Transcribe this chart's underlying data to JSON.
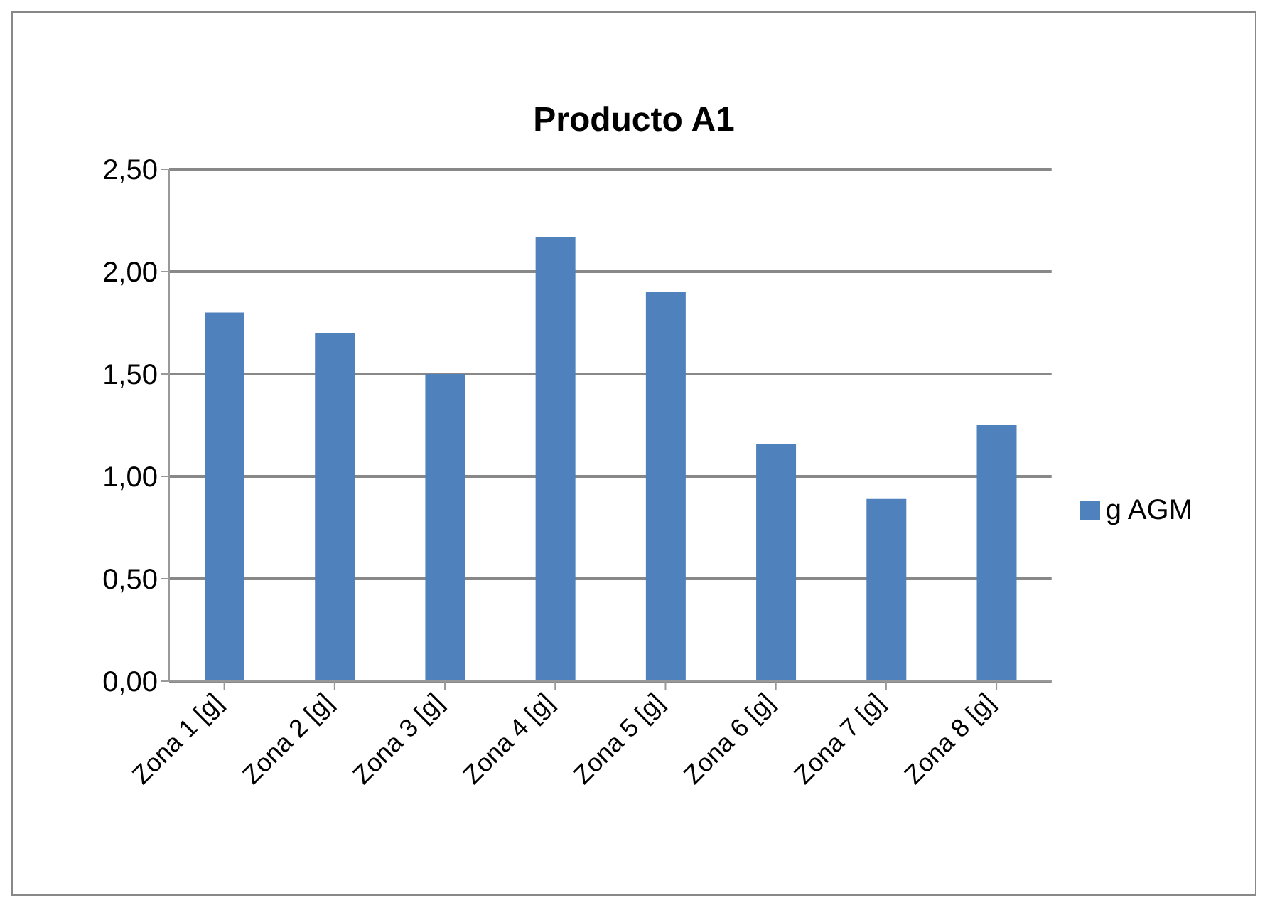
{
  "chart_data": {
    "type": "bar",
    "title": "Producto A1",
    "categories": [
      "Zona 1 [g]",
      "Zona 2 [g]",
      "Zona 3 [g]",
      "Zona 4 [g]",
      "Zona 5 [g]",
      "Zona 6 [g]",
      "Zona 7 [g]",
      "Zona 8 [g]"
    ],
    "series": [
      {
        "name": "g  AGM",
        "color": "#4f81bd",
        "values": [
          1.8,
          1.7,
          1.5,
          2.17,
          1.9,
          1.16,
          0.89,
          1.25
        ]
      }
    ],
    "ylim": [
      0,
      2.5
    ],
    "yticks": [
      {
        "value": 0,
        "label": "0,00"
      },
      {
        "value": 0.5,
        "label": "0,50"
      },
      {
        "value": 1,
        "label": "1,00"
      },
      {
        "value": 1.5,
        "label": "1,50"
      },
      {
        "value": 2,
        "label": "2,00"
      },
      {
        "value": 2.5,
        "label": "2,50"
      }
    ],
    "grid": "y",
    "legend": "right"
  }
}
